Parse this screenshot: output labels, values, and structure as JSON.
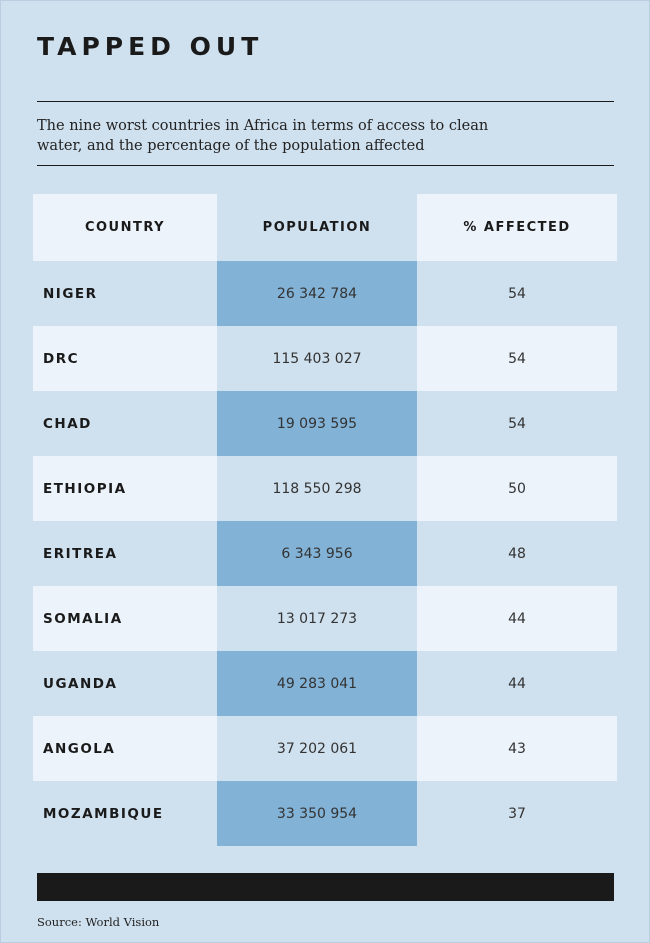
{
  "title": "TAPPED OUT",
  "subtitle": "The nine worst countries in Africa in terms of access to clean water, and the percentage of the population affected",
  "source": "Source: World Vision",
  "colors": {
    "background": "#cfe0ee",
    "light_row": "#ecf3fa",
    "highlight": "#82b2d6",
    "ink": "#1a1a1a"
  },
  "chart_data": {
    "type": "table",
    "columns": [
      "COUNTRY",
      "POPULATION",
      "% AFFECTED"
    ],
    "rows": [
      {
        "country": "NIGER",
        "population": "26 342 784",
        "affected": "54"
      },
      {
        "country": "DRC",
        "population": "115 403 027",
        "affected": "54"
      },
      {
        "country": "CHAD",
        "population": "19 093 595",
        "affected": "54"
      },
      {
        "country": "ETHIOPIA",
        "population": "118 550 298",
        "affected": "50"
      },
      {
        "country": "ERITREA",
        "population": "6 343 956",
        "affected": "48"
      },
      {
        "country": "SOMALIA",
        "population": "13 017 273",
        "affected": "44"
      },
      {
        "country": "UGANDA",
        "population": "49 283 041",
        "affected": "44"
      },
      {
        "country": "ANGOLA",
        "population": "37 202 061",
        "affected": "43"
      },
      {
        "country": "MOZAMBIQUE",
        "population": "33 350 954",
        "affected": "37"
      }
    ]
  }
}
